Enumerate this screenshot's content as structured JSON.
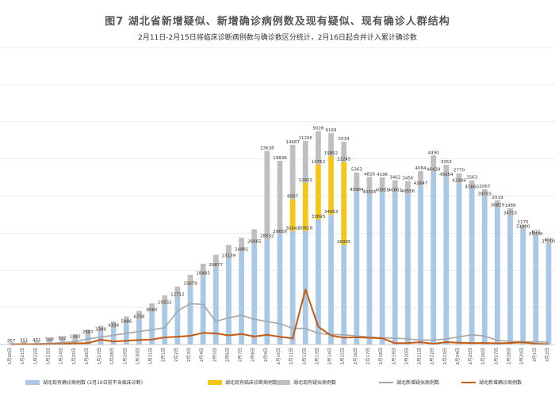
{
  "chart_data": {
    "type": "bar",
    "title": "图7 湖北省新增疑似、新增确诊病例数及现有疑似、现有确诊人群结构",
    "subtitle": "2月11日-2月15日将临床诊断病例数与确诊数区分统计，2月16日起合并计入累计确诊数",
    "categories": [
      "1月20日",
      "1月21日",
      "1月22日",
      "1月23日",
      "1月24日",
      "1月25日",
      "1月26日",
      "1月27日",
      "1月28日",
      "1月29日",
      "1月30日",
      "1月31日",
      "2月1日",
      "2月2日",
      "2月3日",
      "2月4日",
      "2月5日",
      "2月6日",
      "2月7日",
      "2月8日",
      "2月9日",
      "2月10日",
      "2月11日",
      "2月12日",
      "2月13日",
      "2月14日",
      "2月15日",
      "2月16日",
      "2月17日",
      "2月18日",
      "2月19日",
      "2月20日",
      "2月21日",
      "2月22日",
      "2月23日",
      "2月24日",
      "2月25日",
      "2月26日",
      "2月27日",
      "2月28日",
      "2月29日",
      "3月1日",
      "3月2日"
    ],
    "series": [
      {
        "name": "湖北现有确诊病例数 (2月16日前不含临床诊断)",
        "color": "#a9c8e6",
        "values": [
          257,
          351,
          471,
          588,
          922,
          1382,
          2567,
          3349,
          4334,
          5486,
          6738,
          8565,
          10532,
          12712,
          15679,
          18483,
          20677,
          23139,
          24881,
          26965,
          28532,
          29659,
          30543,
          30618,
          33693,
          34953,
          26885,
          40984,
          40335,
          40855,
          40801,
          40556,
          42647,
          46439,
          45054,
          43369,
          41660,
          39755,
          36829,
          34715,
          31000,
          29000,
          27000
        ]
      },
      {
        "name": "湖北现有临床诊断病例数",
        "color": "#f5c518",
        "values": [
          0,
          0,
          0,
          0,
          0,
          0,
          0,
          0,
          0,
          0,
          0,
          0,
          0,
          0,
          0,
          0,
          0,
          0,
          0,
          0,
          0,
          0,
          8567,
          12922,
          14752,
          15802,
          22245,
          0,
          0,
          0,
          0,
          0,
          0,
          0,
          0,
          0,
          0,
          0,
          0,
          0,
          0,
          0,
          0
        ]
      },
      {
        "name": "湖北现有疑似病例数",
        "color": "#bfbfbf",
        "values": [
          300,
          500,
          700,
          900,
          1100,
          1300,
          1500,
          1700,
          1900,
          2100,
          2300,
          2500,
          2700,
          2900,
          3100,
          3300,
          3500,
          3700,
          3900,
          4100,
          23638,
          19838,
          14687,
          11295,
          9028,
          6169,
          5534,
          5363,
          4826,
          4196,
          3462,
          3456,
          4084,
          4490,
          3363,
          2770,
          2563,
          2067,
          2019,
          1989,
          1175,
          600,
          400
        ]
      },
      {
        "name": "湖北新增疑似病例数",
        "color": "#a6a6a6",
        "values": [
          60,
          100,
          180,
          300,
          500,
          800,
          1500,
          2000,
          2500,
          3000,
          3500,
          4000,
          4500,
          9000,
          11000,
          10800,
          6200,
          7200,
          7900,
          6800,
          6200,
          5600,
          4400,
          4300,
          3000,
          2700,
          2600,
          2300,
          2000,
          1800,
          1700,
          1500,
          1200,
          1200,
          1500,
          2100,
          2600,
          2300,
          1100,
          900,
          800,
          700,
          600
        ]
      },
      {
        "name": "湖北新增确诊病例数",
        "color": "#c55a11",
        "values": [
          72,
          105,
          69,
          105,
          180,
          323,
          371,
          1291,
          840,
          1032,
          1220,
          1347,
          1921,
          2103,
          2345,
          3156,
          2987,
          2447,
          2841,
          2147,
          2618,
          2097,
          1638,
          14840,
          4823,
          2420,
          1843,
          1933,
          1807,
          1693,
          349,
          411,
          631,
          196,
          630,
          499,
          401,
          409,
          318,
          423,
          570,
          196,
          114
        ]
      }
    ],
    "ylim": [
      0,
      80000
    ],
    "xlabel": "",
    "ylabel": "",
    "grid": true,
    "legend": "bottom"
  }
}
